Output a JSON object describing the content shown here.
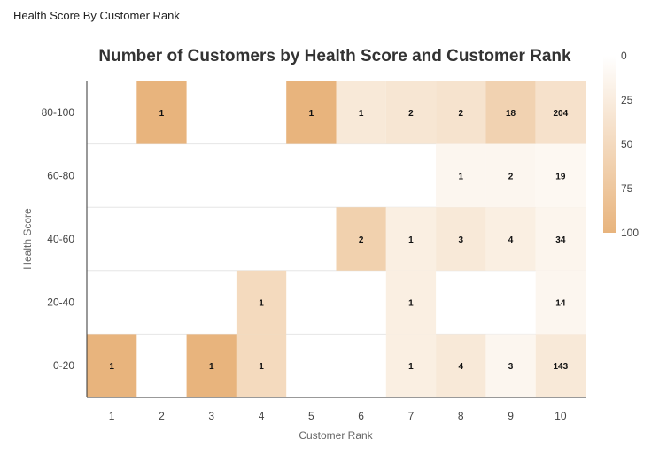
{
  "panel": {
    "title": "Health Score By Customer Rank"
  },
  "chart_data": {
    "type": "heatmap",
    "title": "Number of Customers by Health Score and Customer Rank",
    "xlabel": "Customer Rank",
    "ylabel": "Health Score",
    "x_categories": [
      "1",
      "2",
      "3",
      "4",
      "5",
      "6",
      "7",
      "8",
      "9",
      "10"
    ],
    "y_categories": [
      "80-100",
      "60-80",
      "40-60",
      "20-40",
      "0-20"
    ],
    "cells": [
      {
        "x": "2",
        "y": "80-100",
        "value": 1,
        "color_level": 100
      },
      {
        "x": "5",
        "y": "80-100",
        "value": 1,
        "color_level": 100
      },
      {
        "x": "6",
        "y": "80-100",
        "value": 1,
        "color_level": 30
      },
      {
        "x": "7",
        "y": "80-100",
        "value": 2,
        "color_level": 34
      },
      {
        "x": "8",
        "y": "80-100",
        "value": 2,
        "color_level": 38
      },
      {
        "x": "9",
        "y": "80-100",
        "value": 18,
        "color_level": 60
      },
      {
        "x": "10",
        "y": "80-100",
        "value": 204,
        "color_level": 40
      },
      {
        "x": "8",
        "y": "60-80",
        "value": 1,
        "color_level": 12
      },
      {
        "x": "9",
        "y": "60-80",
        "value": 2,
        "color_level": 12
      },
      {
        "x": "10",
        "y": "60-80",
        "value": 19,
        "color_level": 10
      },
      {
        "x": "6",
        "y": "40-60",
        "value": 2,
        "color_level": 62
      },
      {
        "x": "7",
        "y": "40-60",
        "value": 1,
        "color_level": 22
      },
      {
        "x": "8",
        "y": "40-60",
        "value": 3,
        "color_level": 30
      },
      {
        "x": "9",
        "y": "40-60",
        "value": 4,
        "color_level": 22
      },
      {
        "x": "10",
        "y": "40-60",
        "value": 34,
        "color_level": 14
      },
      {
        "x": "4",
        "y": "20-40",
        "value": 1,
        "color_level": 50
      },
      {
        "x": "7",
        "y": "20-40",
        "value": 1,
        "color_level": 22
      },
      {
        "x": "10",
        "y": "20-40",
        "value": 14,
        "color_level": 12
      },
      {
        "x": "1",
        "y": "0-20",
        "value": 1,
        "color_level": 100
      },
      {
        "x": "3",
        "y": "0-20",
        "value": 1,
        "color_level": 100
      },
      {
        "x": "4",
        "y": "0-20",
        "value": 1,
        "color_level": 50
      },
      {
        "x": "7",
        "y": "0-20",
        "value": 1,
        "color_level": 22
      },
      {
        "x": "8",
        "y": "0-20",
        "value": 4,
        "color_level": 30
      },
      {
        "x": "9",
        "y": "0-20",
        "value": 3,
        "color_level": 12
      },
      {
        "x": "10",
        "y": "0-20",
        "value": 143,
        "color_level": 30
      }
    ],
    "color_scale": {
      "min": 0,
      "max": 100,
      "ticks": [
        0,
        25,
        50,
        75,
        100
      ],
      "min_color": "#ffffff",
      "max_color": "#e8b47d"
    },
    "legend_position": "right",
    "grid": true
  }
}
